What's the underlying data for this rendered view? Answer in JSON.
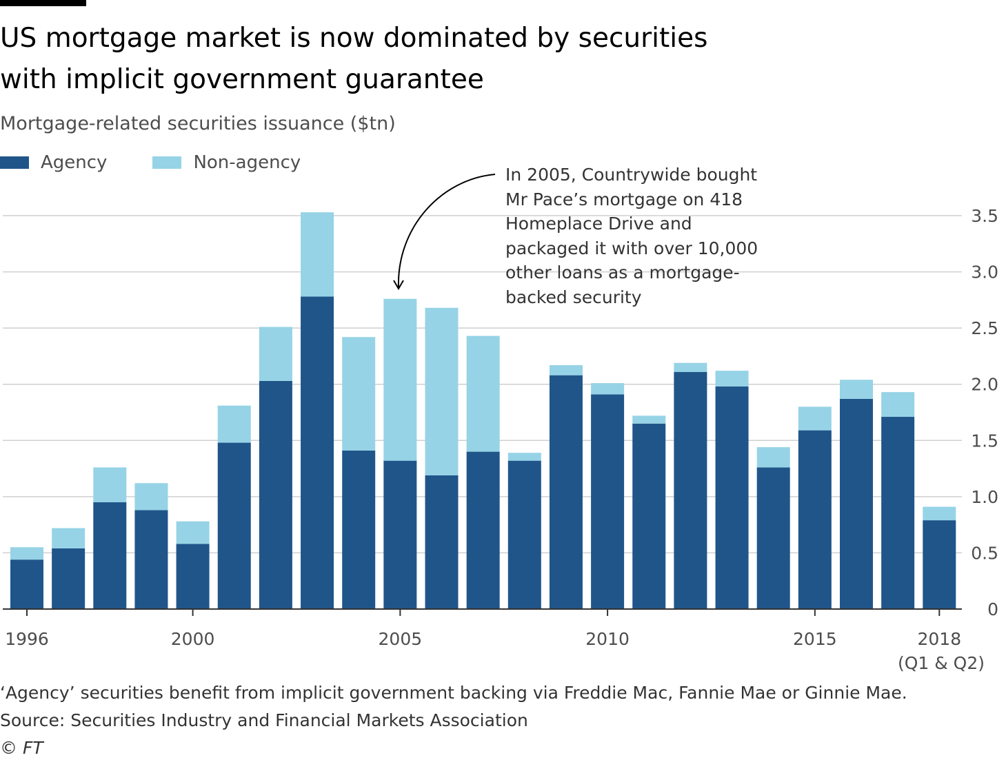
{
  "title": "US mortgage market is now dominated by securities with implicit government guarantee",
  "subtitle": "Mortgage-related securities issuance ($tn)",
  "colors": {
    "agency": "#20558a",
    "non_agency": "#96d3e6",
    "gridline": "#cfcfcf",
    "axis": "#333333",
    "text": "#4d4d4d"
  },
  "annotation": {
    "text": "In 2005, Countrywide bought Mr Pace’s mortgage on 418 Homeplace Drive and packaged it with over 10,000 other loans as a mortgage-backed security",
    "points_to": "2005"
  },
  "footnote": {
    "note": "‘Agency’ securities benefit from implicit government backing via Freddie Mac, Fannie Mae or Ginnie Mae.",
    "source": "Source: Securities Industry and Financial Markets Association",
    "credit": "© FT"
  },
  "chart_data": {
    "type": "bar",
    "stacked": true,
    "title": "US mortgage market is now dominated by securities with implicit government guarantee",
    "ylabel": "Mortgage-related securities issuance ($tn)",
    "xlabel": "",
    "categories": [
      "1996",
      "1997",
      "1998",
      "1999",
      "2000",
      "2001",
      "2002",
      "2003",
      "2004",
      "2005",
      "2006",
      "2007",
      "2008",
      "2009",
      "2010",
      "2011",
      "2012",
      "2013",
      "2014",
      "2015",
      "2016",
      "2017",
      "2018 (Q1 & Q2)"
    ],
    "series": [
      {
        "name": "Agency",
        "values": [
          0.44,
          0.54,
          0.95,
          0.88,
          0.58,
          1.48,
          2.03,
          2.78,
          1.41,
          1.32,
          1.19,
          1.4,
          1.32,
          2.08,
          1.91,
          1.65,
          2.11,
          1.98,
          1.26,
          1.59,
          1.87,
          1.71,
          0.79
        ]
      },
      {
        "name": "Non-agency",
        "values": [
          0.11,
          0.18,
          0.31,
          0.24,
          0.2,
          0.33,
          0.48,
          0.75,
          1.01,
          1.44,
          1.49,
          1.03,
          0.07,
          0.09,
          0.1,
          0.07,
          0.08,
          0.14,
          0.18,
          0.21,
          0.17,
          0.22,
          0.12
        ]
      }
    ],
    "legend": [
      "Agency",
      "Non-agency"
    ],
    "x_tick_labels": [
      "1996",
      "2000",
      "2005",
      "2010",
      "2015",
      "2018"
    ],
    "x_tick_sublabel": "(Q1 & Q2)",
    "y_ticks": [
      "0",
      "0.5",
      "1.0",
      "1.5",
      "2.0",
      "2.5",
      "3.0",
      "3.5"
    ],
    "ylim": [
      0,
      3.5
    ],
    "y_axis_side": "right",
    "grid": true,
    "legend_position": "top-left"
  }
}
